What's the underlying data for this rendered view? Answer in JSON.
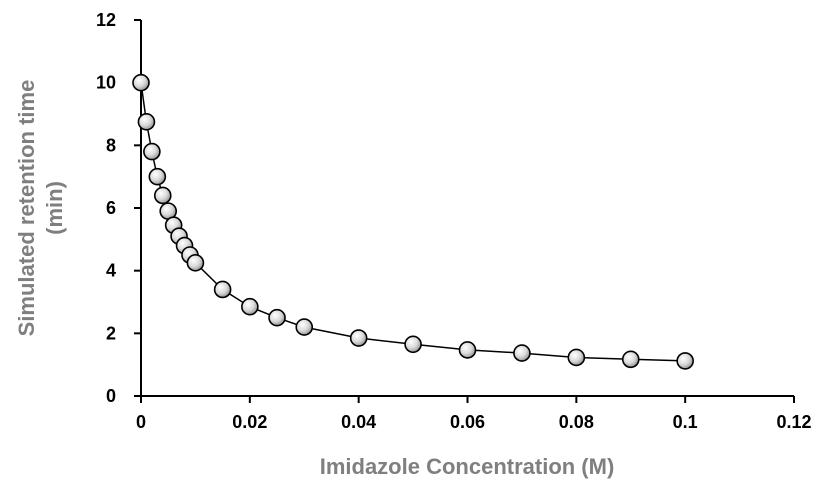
{
  "chart_data": {
    "type": "scatter",
    "title": "",
    "xlabel": "Imidazole Concentration (M)",
    "ylabel_line1": "Simulated retention time",
    "ylabel_line2": "(min)",
    "xlim": [
      0,
      0.12
    ],
    "ylim": [
      0,
      12
    ],
    "x_ticks": [
      0,
      0.02,
      0.04,
      0.06,
      0.08,
      0.1,
      0.12
    ],
    "x_tick_labels": [
      "0",
      "0.02",
      "0.04",
      "0.06",
      "0.08",
      "0.1",
      "0.12"
    ],
    "y_ticks": [
      0,
      2,
      4,
      6,
      8,
      10,
      12
    ],
    "y_tick_labels": [
      "0",
      "2",
      "4",
      "6",
      "8",
      "10",
      "12"
    ],
    "grid": false,
    "legend": "none",
    "connected_line": true,
    "colors": {
      "axis_title": "#7f7f7f",
      "axis": "#000000",
      "line": "#000000",
      "marker_fill_light": "#ffffff",
      "marker_fill_dark": "#8c8c8c"
    },
    "series": [
      {
        "x": [
          0,
          0.001,
          0.002,
          0.003,
          0.004,
          0.005,
          0.006,
          0.007,
          0.008,
          0.009,
          0.01,
          0.015,
          0.02,
          0.025,
          0.03,
          0.04,
          0.05,
          0.06,
          0.07,
          0.08,
          0.09,
          0.1
        ],
        "y": [
          10.0,
          8.75,
          7.8,
          7.0,
          6.4,
          5.9,
          5.45,
          5.1,
          4.8,
          4.5,
          4.25,
          3.4,
          2.85,
          2.5,
          2.2,
          1.85,
          1.65,
          1.47,
          1.37,
          1.23,
          1.17,
          1.12
        ]
      }
    ]
  }
}
